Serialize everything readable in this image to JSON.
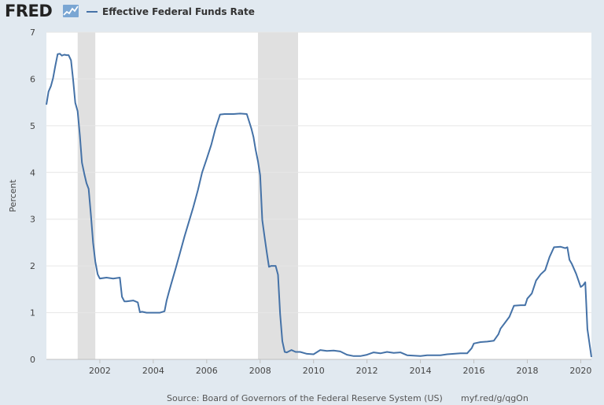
{
  "header": {
    "logo_text": "FRED",
    "legend_label": "Effective Federal Funds Rate",
    "series_color": "#4572a7"
  },
  "footer": {
    "source": "Source: Board of Governors of the Federal Reserve System (US)",
    "url": "myf.red/g/qgOn"
  },
  "chart_data": {
    "type": "line",
    "title": "",
    "xlabel": "",
    "ylabel": "Percent",
    "xlim": [
      2000.0,
      2020.4
    ],
    "ylim": [
      0,
      7
    ],
    "y_ticks": [
      0,
      1,
      2,
      3,
      4,
      5,
      6,
      7
    ],
    "x_ticks": [
      2002,
      2004,
      2006,
      2008,
      2010,
      2012,
      2014,
      2016,
      2018,
      2020
    ],
    "grid": true,
    "legend_position": "top-left",
    "recessions": [
      [
        2001.17,
        2001.83
      ],
      [
        2007.92,
        2009.42
      ]
    ],
    "series": [
      {
        "name": "Effective Federal Funds Rate",
        "color": "#4572a7",
        "x": [
          2000.0,
          2000.08,
          2000.17,
          2000.25,
          2000.33,
          2000.42,
          2000.5,
          2000.58,
          2000.67,
          2000.75,
          2000.83,
          2000.92,
          2001.0,
          2001.08,
          2001.17,
          2001.25,
          2001.33,
          2001.42,
          2001.5,
          2001.58,
          2001.67,
          2001.75,
          2001.83,
          2001.92,
          2002.0,
          2002.25,
          2002.5,
          2002.75,
          2002.83,
          2002.92,
          2003.0,
          2003.25,
          2003.42,
          2003.5,
          2003.58,
          2003.75,
          2004.0,
          2004.25,
          2004.42,
          2004.5,
          2004.58,
          2004.67,
          2004.83,
          2005.0,
          2005.17,
          2005.33,
          2005.5,
          2005.67,
          2005.83,
          2006.0,
          2006.17,
          2006.33,
          2006.5,
          2006.67,
          2006.83,
          2007.0,
          2007.25,
          2007.5,
          2007.67,
          2007.75,
          2007.83,
          2007.92,
          2008.0,
          2008.08,
          2008.17,
          2008.25,
          2008.33,
          2008.42,
          2008.58,
          2008.67,
          2008.75,
          2008.83,
          2008.92,
          2009.0,
          2009.17,
          2009.33,
          2009.5,
          2009.75,
          2010.0,
          2010.25,
          2010.5,
          2010.75,
          2011.0,
          2011.25,
          2011.5,
          2011.75,
          2012.0,
          2012.25,
          2012.5,
          2012.75,
          2013.0,
          2013.25,
          2013.5,
          2013.75,
          2014.0,
          2014.25,
          2014.5,
          2014.75,
          2015.0,
          2015.25,
          2015.5,
          2015.75,
          2015.92,
          2016.0,
          2016.25,
          2016.5,
          2016.75,
          2016.92,
          2017.0,
          2017.17,
          2017.33,
          2017.5,
          2017.75,
          2017.92,
          2018.0,
          2018.17,
          2018.33,
          2018.5,
          2018.67,
          2018.83,
          2019.0,
          2019.25,
          2019.42,
          2019.5,
          2019.58,
          2019.67,
          2019.83,
          2020.0,
          2020.08,
          2020.17,
          2020.25,
          2020.4
        ],
        "values": [
          5.45,
          5.73,
          5.85,
          6.02,
          6.27,
          6.53,
          6.54,
          6.5,
          6.52,
          6.51,
          6.51,
          6.4,
          5.98,
          5.49,
          5.31,
          4.8,
          4.21,
          3.97,
          3.77,
          3.65,
          3.07,
          2.49,
          2.09,
          1.82,
          1.73,
          1.75,
          1.73,
          1.75,
          1.34,
          1.24,
          1.24,
          1.26,
          1.22,
          1.01,
          1.02,
          1.0,
          1.0,
          1.0,
          1.03,
          1.26,
          1.43,
          1.61,
          1.93,
          2.28,
          2.63,
          2.94,
          3.26,
          3.62,
          4.0,
          4.29,
          4.59,
          4.94,
          5.24,
          5.25,
          5.25,
          5.25,
          5.26,
          5.25,
          4.94,
          4.76,
          4.49,
          4.24,
          3.94,
          2.98,
          2.61,
          2.28,
          1.98,
          2.0,
          2.0,
          1.81,
          0.97,
          0.39,
          0.16,
          0.15,
          0.2,
          0.16,
          0.16,
          0.12,
          0.11,
          0.2,
          0.18,
          0.19,
          0.17,
          0.1,
          0.07,
          0.07,
          0.1,
          0.15,
          0.13,
          0.16,
          0.14,
          0.15,
          0.09,
          0.08,
          0.07,
          0.09,
          0.09,
          0.09,
          0.11,
          0.12,
          0.13,
          0.13,
          0.24,
          0.34,
          0.37,
          0.38,
          0.4,
          0.54,
          0.66,
          0.79,
          0.91,
          1.15,
          1.16,
          1.16,
          1.3,
          1.41,
          1.69,
          1.82,
          1.91,
          2.19,
          2.4,
          2.41,
          2.38,
          2.4,
          2.13,
          2.04,
          1.83,
          1.55,
          1.58,
          1.65,
          0.65,
          0.05
        ]
      }
    ]
  }
}
